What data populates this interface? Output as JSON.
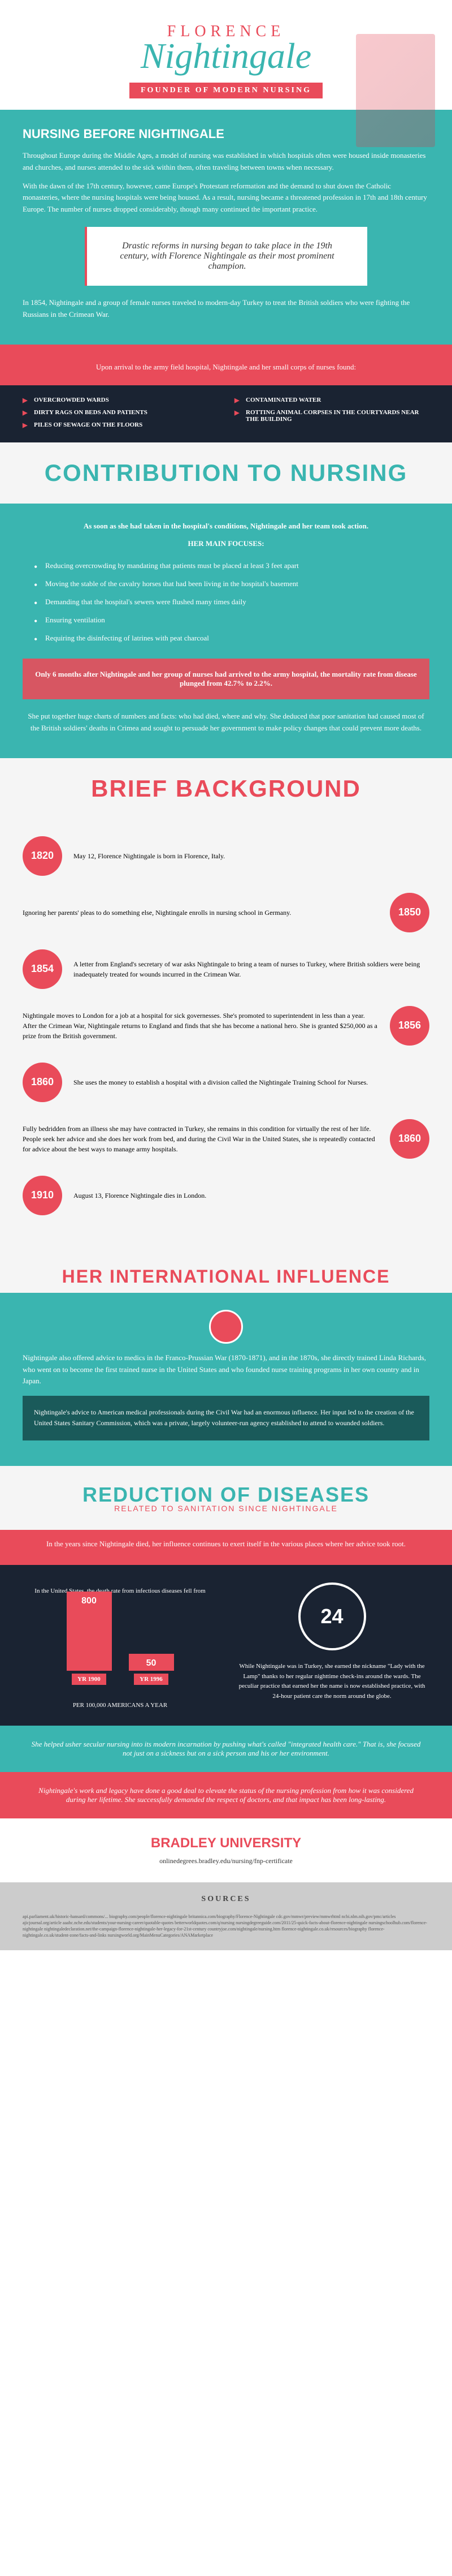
{
  "header": {
    "title_script": "FLORENCE",
    "title_main": "Nightingale",
    "banner": "FOUNDER OF MODERN NURSING"
  },
  "before": {
    "heading": "NURSING BEFORE NIGHTINGALE",
    "p1": "Throughout Europe during the Middle Ages, a model of nursing was established in which hospitals often were housed inside monasteries and churches, and nurses attended to the sick within them, often traveling between towns when necessary.",
    "p2": "With the dawn of the 17th century, however, came Europe's Protestant reformation and the demand to shut down the Catholic monasteries, where the nursing hospitals were being housed. As a result, nursing became a threatened profession in 17th and 18th century Europe. The number of nurses dropped considerably, though many continued the important practice.",
    "quote": "Drastic reforms in nursing began to take place in the 19th century, with Florence Nightingale as their most prominent champion.",
    "p3": "In 1854, Nightingale and a group of female nurses traveled to modern-day Turkey to treat the British soldiers who were fighting the Russians in the Crimean War."
  },
  "findings": {
    "intro": "Upon arrival to the army field hospital, Nightingale and her small corps of nurses found:",
    "items": [
      "OVERCROWDED WARDS",
      "DIRTY RAGS ON BEDS AND PATIENTS",
      "PILES OF SEWAGE ON THE FLOORS",
      "CONTAMINATED WATER",
      "ROTTING ANIMAL CORPSES IN THE COURTYARDS NEAR THE BUILDING"
    ]
  },
  "contribution": {
    "title": "CONTRIBUTION TO NURSING",
    "intro": "As soon as she had taken in the hospital's conditions, Nightingale and her team took action.",
    "focuses_heading": "HER MAIN FOCUSES:",
    "focuses": [
      "Reducing overcrowding by mandating that patients must be placed at least 3 feet apart",
      "Moving the stable of the cavalry horses that had been living in the hospital's basement",
      "Demanding that the hospital's sewers were flushed many times daily",
      "Ensuring ventilation",
      "Requiring the disinfecting of latrines with peat charcoal"
    ],
    "stat": "Only 6 months after Nightingale and her group of nurses had arrived to the army hospital, the mortality rate from disease plunged from 42.7% to 2.2%.",
    "outro": "She put together huge charts of numbers and facts: who had died, where and why. She deduced that poor sanitation had caused most of the British soldiers' deaths in Crimea and sought to persuade her government to make policy changes that could prevent more deaths."
  },
  "background": {
    "title": "BRIEF BACKGROUND",
    "events": [
      {
        "year": "1820",
        "side": "left",
        "text": "May 12, Florence Nightingale is born in Florence, Italy."
      },
      {
        "year": "1850",
        "side": "right",
        "text": "Ignoring her parents' pleas to do something else, Nightingale enrolls in nursing school in Germany."
      },
      {
        "year": "1854",
        "side": "left",
        "text": "A letter from England's secretary of war asks Nightingale to bring a team of nurses to Turkey, where British soldiers were being inadequately treated for wounds incurred in the Crimean War."
      },
      {
        "year": "1856",
        "side": "right",
        "text": "Nightingale moves to London for a job at a hospital for sick governesses. She's promoted to superintendent in less than a year. After the Crimean War, Nightingale returns to England and finds that she has become a national hero. She is granted $250,000 as a prize from the British government."
      },
      {
        "year": "1860",
        "side": "left",
        "text": "She uses the money to establish a hospital with a division called the Nightingale Training School for Nurses."
      },
      {
        "year": "1860",
        "side": "right",
        "text": "Fully bedridden from an illness she may have contracted in Turkey, she remains in this condition for virtually the rest of her life. People seek her advice and she does her work from bed, and during the Civil War in the United States, she is repeatedly contacted for advice about the best ways to manage army hospitals."
      },
      {
        "year": "1910",
        "side": "left",
        "text": "August 13, Florence Nightingale dies in London."
      }
    ]
  },
  "international": {
    "title": "HER INTERNATIONAL INFLUENCE",
    "p1": "Nightingale also offered advice to medics in the Franco-Prussian War (1870-1871), and in the 1870s, she directly trained Linda Richards, who went on to become the first trained nurse in the United States and who founded nurse training programs in her own country and in Japan.",
    "p2": "Nightingale's advice to American medical professionals during the Civil War had an enormous influence. Her input led to the creation of the United States Sanitary Commission, which was a private, largely volunteer-run agency established to attend to wounded soldiers."
  },
  "reduction": {
    "title": "REDUCTION OF DISEASES",
    "subtitle": "RELATED TO SANITATION SINCE NIGHTINGALE",
    "intro": "In the years since Nightingale died, her influence continues to exert itself in the various places where her advice took root.",
    "chart": {
      "caption_top": "In the United States, the death rate from infectious diseases fell from",
      "bars": [
        {
          "value": 800,
          "height": 140,
          "label": "YR 1900",
          "color": "#e94b5a"
        },
        {
          "value": 50,
          "height": 30,
          "label": "YR 1996",
          "color": "#e94b5a"
        }
      ],
      "caption_bottom": "PER 100,000 AMERICANS A YEAR"
    },
    "circle_value": "24",
    "lady_text": "While Nightingale was in Turkey, she earned the nickname \"Lady with the Lamp\" thanks to her regular nighttime check-ins around the wards. The peculiar practice that earned her the name is now established practice, with 24-hour patient care the norm around the globe.",
    "integrated": "She helped usher secular nursing into its modern incarnation by pushing what's called \"integrated health care.\" That is, she focused not just on a sickness but on a sick person and his or her environment.",
    "legacy": "Nightingale's work and legacy have done a good deal to elevate the status of the nursing profession from how it was considered during her lifetime. She successfully demanded the respect of doctors, and that impact has been long-lasting."
  },
  "footer": {
    "brand": "BRADLEY UNIVERSITY",
    "url": "onlinedegrees.bradley.edu/nursing/fnp-certificate"
  },
  "sources": {
    "heading": "SOURCES",
    "text": "api.parliament.uk/historic-hansard/commons/... biography.com/people/florence-nightingale britannica.com/biography/Florence-Nightingale cdc.gov/mmwr/preview/mmwrhtml ncbi.nlm.nih.gov/pmc/articles ajicjournal.org/article aaahc.nche.edu/students/your-nursing-career/quotable-quotes betterworldquotes.com/q/nursing nursingdegreeguide.com/2011/25-quick-facts-about-florence-nightingale nursingschoolhub.com/florence-nightingale nightingaledeclaration.net/the-campaign-florence-nightingale-her-legacy-for-21st-century countryjoe.com/nightingale/nursing.htm florence-nightingale.co.uk/resources/biography florence-nightingale.co.uk/student-zone/facts-and-links nursingworld.org/MainMenuCategories/ANAMarketplace"
  }
}
